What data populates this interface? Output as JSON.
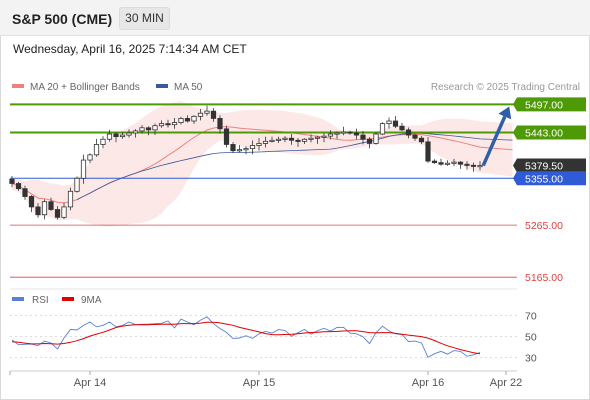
{
  "header": {
    "title": "S&P 500 (CME)",
    "timeframe": "30 MIN",
    "datetime": "Wednesday, April 16, 2025 7:14:34 AM CET"
  },
  "credit": "Research © 2025 Trading Central",
  "colors": {
    "resistance": "#4e9a06",
    "support": "#2f5bd6",
    "target": "#e04040",
    "price_box": "#333333",
    "ma20": "#f08080",
    "ma50": "#3b5a9a",
    "rsi": "#5b7fd6",
    "rsi_ma": "#e00000",
    "arrow": "#2f5fa8",
    "candle": "#333333"
  },
  "chart_data": [
    {
      "type": "candlestick",
      "legend": [
        {
          "name": "MA 20 + Bollinger Bands",
          "color": "#f08080"
        },
        {
          "name": "MA 50",
          "color": "#3b5a9a"
        }
      ],
      "ylim": [
        5150,
        5515
      ],
      "x_ticks": [
        {
          "label": "Apr 14",
          "index": 12
        },
        {
          "label": "Apr 15",
          "index": 38
        },
        {
          "label": "Apr 16",
          "index": 64
        },
        {
          "label": "Apr 22",
          "index": 76
        }
      ],
      "levels": [
        {
          "label": "5497.00",
          "value": 5497,
          "kind": "resistance"
        },
        {
          "label": "5443.00",
          "value": 5443,
          "kind": "resistance"
        },
        {
          "label": "5379.50",
          "value": 5379.5,
          "kind": "price"
        },
        {
          "label": "5355.00",
          "value": 5355,
          "kind": "support"
        },
        {
          "label": "5265.00",
          "value": 5265,
          "kind": "target"
        },
        {
          "label": "5165.00",
          "value": 5165,
          "kind": "target"
        }
      ],
      "close": [
        5345,
        5335,
        5320,
        5300,
        5285,
        5310,
        5295,
        5280,
        5300,
        5330,
        5355,
        5390,
        5400,
        5420,
        5430,
        5440,
        5435,
        5438,
        5442,
        5446,
        5452,
        5448,
        5456,
        5460,
        5458,
        5462,
        5470,
        5465,
        5474,
        5480,
        5484,
        5470,
        5450,
        5420,
        5408,
        5410,
        5412,
        5418,
        5422,
        5426,
        5428,
        5430,
        5432,
        5428,
        5426,
        5430,
        5432,
        5434,
        5436,
        5440,
        5442,
        5444,
        5442,
        5438,
        5430,
        5422,
        5440,
        5460,
        5465,
        5455,
        5448,
        5438,
        5432,
        5425,
        5388,
        5385,
        5382,
        5384,
        5386,
        5382,
        5380,
        5378,
        5379.5
      ],
      "arrow": {
        "from_index": 72.5,
        "from_value": 5379.5,
        "to_index": 76.5,
        "to_value": 5493
      },
      "ma50_start_index": 10
    },
    {
      "type": "line",
      "legend": [
        {
          "name": "RSI",
          "color": "#5b7fd6"
        },
        {
          "name": "9MA",
          "color": "#e00000"
        }
      ],
      "ylim": [
        20,
        80
      ],
      "y_ticks": [
        70,
        50,
        30
      ],
      "rsi": [
        45,
        44,
        42,
        41,
        43,
        45,
        42,
        40,
        48,
        55,
        58,
        60,
        62,
        61,
        60,
        62,
        61,
        60,
        62,
        63,
        61,
        60,
        64,
        62,
        63,
        60,
        66,
        62,
        63,
        65,
        67,
        64,
        57,
        52,
        50,
        48,
        49,
        50,
        52,
        53,
        55,
        56,
        54,
        52,
        53,
        55,
        54,
        55,
        56,
        57,
        58,
        57,
        55,
        52,
        48,
        45,
        53,
        58,
        57,
        52,
        50,
        47,
        45,
        42,
        32,
        33,
        34,
        35,
        36,
        34,
        33,
        32,
        33
      ]
    }
  ]
}
